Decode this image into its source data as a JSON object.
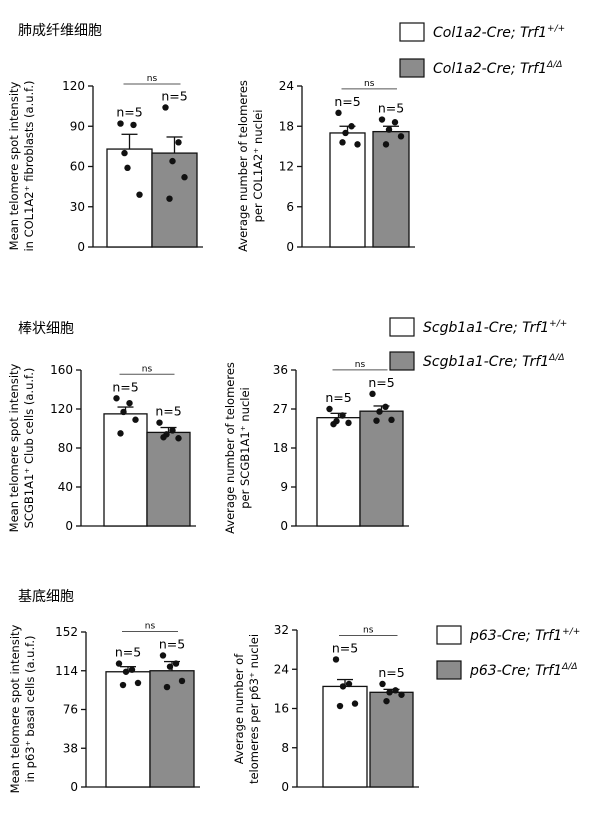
{
  "sections": [
    {
      "title": "肺成纤维细胞",
      "legend": [
        {
          "gene": "Col1a2-Cre; Trf1",
          "sup": "+/+",
          "color": "#ffffff"
        },
        {
          "gene": "Col1a2-Cre; Trf1",
          "sup": "Δ/Δ",
          "color": "#8c8c8c"
        }
      ]
    },
    {
      "title": "棒状细胞",
      "legend": [
        {
          "gene": "Scgb1a1-Cre; Trf1",
          "sup": "+/+",
          "color": "#ffffff"
        },
        {
          "gene": "Scgb1a1-Cre; Trf1",
          "sup": "Δ/Δ",
          "color": "#8c8c8c"
        }
      ]
    },
    {
      "title": "基底细胞",
      "legend": [
        {
          "gene": "p63-Cre; Trf1",
          "sup": "+/+",
          "color": "#ffffff"
        },
        {
          "gene": "p63-Cre; Trf1",
          "sup": "Δ/Δ",
          "color": "#8c8c8c"
        }
      ]
    }
  ],
  "chart_data": [
    {
      "type": "bar",
      "ylabel": [
        "Mean telomere spot intensity",
        "in COL1A2⁺ fibroblasts (a.u.f.)"
      ],
      "ylim": [
        0,
        120
      ],
      "yticks": [
        0,
        30,
        60,
        90,
        120
      ],
      "series": [
        {
          "value": 73,
          "sem": 11,
          "n_label": "n=5",
          "points": [
            92,
            91,
            59,
            39,
            70
          ],
          "fill": "#ffffff"
        },
        {
          "value": 70,
          "sem": 12,
          "n_label": "n=5",
          "points": [
            104,
            78,
            64,
            52,
            36
          ],
          "fill": "#8c8c8c"
        }
      ],
      "significance": "ns"
    },
    {
      "type": "bar",
      "ylabel": [
        "Average number of telomeres",
        "per COL1A2⁺ nuclei"
      ],
      "ylim": [
        0,
        24
      ],
      "yticks": [
        0,
        6,
        12,
        18,
        24
      ],
      "series": [
        {
          "value": 17,
          "sem": 1,
          "n_label": "n=5",
          "points": [
            20,
            18,
            17,
            15.3,
            15.6
          ],
          "fill": "#ffffff"
        },
        {
          "value": 17.2,
          "sem": 0.8,
          "n_label": "n=5",
          "points": [
            19,
            18.6,
            17.5,
            16.5,
            15.3
          ],
          "fill": "#8c8c8c"
        }
      ],
      "significance": "ns"
    },
    {
      "type": "bar",
      "ylabel": [
        "Mean telomere spot intensity",
        "SCGB1A1⁺ Club cells (a.u.f.)"
      ],
      "ylim": [
        0,
        160
      ],
      "yticks": [
        0,
        40,
        80,
        120,
        160
      ],
      "series": [
        {
          "value": 115,
          "sem": 7,
          "n_label": "n=5",
          "points": [
            131,
            126,
            117,
            109,
            95
          ],
          "fill": "#ffffff"
        },
        {
          "value": 96,
          "sem": 5,
          "n_label": "n=5",
          "points": [
            106,
            98,
            94,
            90,
            91
          ],
          "fill": "#8c8c8c"
        }
      ],
      "significance": "ns"
    },
    {
      "type": "bar",
      "ylabel": [
        "Average number of telomeres",
        "per SCGB1A1⁺ nuclei"
      ],
      "ylim": [
        0,
        36
      ],
      "yticks": [
        0,
        9,
        18,
        27,
        36
      ],
      "series": [
        {
          "value": 25,
          "sem": 1,
          "n_label": "n=5",
          "points": [
            27,
            25.5,
            24.2,
            23.8,
            23.5
          ],
          "fill": "#ffffff"
        },
        {
          "value": 26.5,
          "sem": 1.2,
          "n_label": "n=5",
          "points": [
            30.5,
            27.5,
            26.4,
            24.5,
            24.3
          ],
          "fill": "#8c8c8c"
        }
      ],
      "significance": "ns"
    },
    {
      "type": "bar",
      "ylabel": [
        "Mean telomere spot intensity",
        "in p63⁺ basal cells (a.u.f.)"
      ],
      "ylim": [
        0,
        152
      ],
      "yticks": [
        0,
        38,
        76,
        114,
        152
      ],
      "series": [
        {
          "value": 113,
          "sem": 5,
          "n_label": "n=5",
          "points": [
            121,
            115,
            113,
            102,
            100
          ],
          "fill": "#ffffff"
        },
        {
          "value": 114,
          "sem": 9,
          "n_label": "n=5",
          "points": [
            129,
            121,
            118,
            104,
            98
          ],
          "fill": "#8c8c8c"
        }
      ],
      "significance": "ns"
    },
    {
      "type": "bar",
      "ylabel": [
        "Average number of",
        "telomeres per p63⁺ nuclei"
      ],
      "ylim": [
        0,
        32
      ],
      "yticks": [
        0,
        8,
        16,
        24,
        32
      ],
      "series": [
        {
          "value": 20.5,
          "sem": 1.4,
          "n_label": "n=5",
          "points": [
            26,
            21,
            20.5,
            17,
            16.5
          ],
          "fill": "#ffffff"
        },
        {
          "value": 19.3,
          "sem": 0.6,
          "n_label": "n=5",
          "points": [
            21,
            19.7,
            19.3,
            18.8,
            17.5
          ],
          "fill": "#8c8c8c"
        }
      ],
      "significance": "ns"
    }
  ]
}
